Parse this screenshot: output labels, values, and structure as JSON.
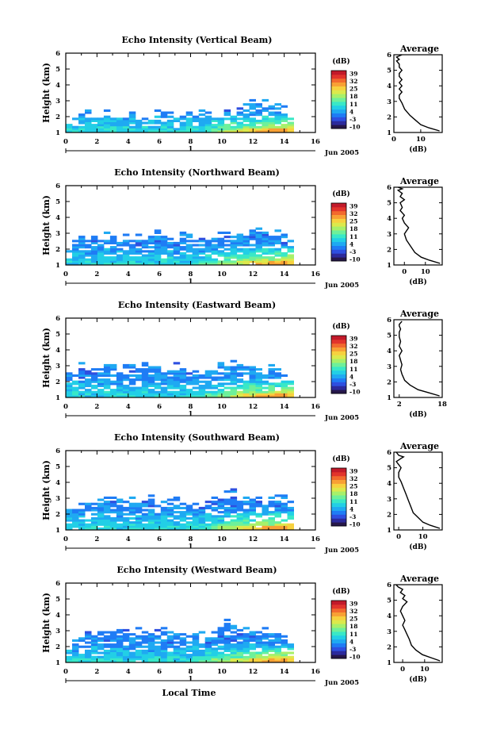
{
  "xlabel": "Local Time",
  "date_label": "Jun 2005",
  "date_tick_label": "1",
  "colorbar": {
    "unit_label": "(dB)",
    "tick_labels": [
      "39",
      "32",
      "25",
      "18",
      "11",
      "4",
      "-3",
      "-10"
    ],
    "colors": [
      "#26174a",
      "#2c2a9c",
      "#2e4fe0",
      "#1f7cf5",
      "#1fa9f2",
      "#22cfe6",
      "#39e8c7",
      "#6ef09a",
      "#a7f06a",
      "#dce94c",
      "#f7d13f",
      "#f8a035",
      "#f26a2e",
      "#e2342c",
      "#c21a2a"
    ]
  },
  "average_x_label": "(dB)",
  "chart_data": [
    {
      "type": "heatmap",
      "title": "Echo Intensity (Vertical Beam)",
      "ylabel": "Height (km)",
      "xlim": [
        0,
        16
      ],
      "ylim": [
        1,
        6
      ],
      "x_ticks": [
        "0",
        "2",
        "4",
        "6",
        "8",
        "10",
        "12",
        "14",
        "16"
      ],
      "y_ticks": [
        "1",
        "2",
        "3",
        "4",
        "5",
        "6"
      ],
      "top": [
        1.5,
        1.7,
        2.0,
        1.9,
        1.8,
        1.8,
        1.9,
        1.8,
        1.8,
        1.8,
        1.8,
        1.7,
        1.7,
        1.8,
        2.0,
        2.1,
        2.0,
        1.9,
        1.8,
        1.9,
        2.0,
        2.1,
        2.0,
        1.9,
        1.8,
        1.9,
        2.0,
        2.2,
        2.4,
        2.6,
        2.7,
        2.6,
        2.5,
        2.4,
        2.2,
        1.6
      ],
      "profile": {
        "title": "Average",
        "xlabel": "(dB)",
        "xlim": [
          0,
          18
        ],
        "ylim": [
          1,
          6
        ],
        "x_ticks": [
          "0",
          "10"
        ],
        "y_ticks": [
          "1",
          "2",
          "3",
          "4",
          "5",
          "6"
        ],
        "x": [
          17,
          13,
          10,
          8,
          6,
          4,
          3,
          2,
          2,
          3,
          2,
          3,
          2,
          3,
          2,
          2,
          3,
          2,
          2,
          1,
          2,
          1,
          3
        ],
        "y": [
          1.1,
          1.3,
          1.5,
          1.8,
          2.1,
          2.5,
          2.9,
          3.2,
          3.4,
          3.6,
          3.8,
          4.0,
          4.2,
          4.4,
          4.6,
          4.8,
          5.0,
          5.2,
          5.4,
          5.6,
          5.7,
          5.85,
          6.0
        ]
      }
    },
    {
      "type": "heatmap",
      "title": "Echo Intensity (Northward Beam)",
      "ylabel": "Height (km)",
      "xlim": [
        0,
        16
      ],
      "ylim": [
        1,
        6
      ],
      "x_ticks": [
        "0",
        "2",
        "4",
        "6",
        "8",
        "10",
        "12",
        "14",
        "16"
      ],
      "y_ticks": [
        "1",
        "2",
        "3",
        "4",
        "5",
        "6"
      ],
      "top": [
        1.8,
        2.1,
        2.4,
        2.5,
        2.6,
        2.4,
        2.6,
        2.5,
        2.7,
        2.6,
        2.5,
        2.6,
        2.5,
        2.7,
        2.8,
        2.6,
        2.4,
        2.5,
        2.6,
        2.5,
        2.4,
        2.3,
        2.4,
        2.5,
        2.6,
        2.7,
        2.8,
        2.9,
        2.8,
        2.7,
        2.9,
        2.8,
        2.6,
        2.7,
        2.8,
        2.4
      ],
      "profile": {
        "title": "Average",
        "xlabel": "(dB)",
        "xlim": [
          -5,
          18
        ],
        "ylim": [
          1,
          6
        ],
        "x_ticks": [
          "0",
          "10"
        ],
        "y_ticks": [
          "1",
          "2",
          "3",
          "4",
          "5",
          "6"
        ],
        "x": [
          17,
          12,
          8,
          5,
          3,
          1,
          0,
          2,
          0,
          -1,
          0,
          -2,
          -1,
          -2,
          0,
          -2,
          -1,
          -2,
          -3,
          -1,
          -2,
          -3
        ],
        "y": [
          1.1,
          1.3,
          1.5,
          1.8,
          2.2,
          2.6,
          3.0,
          3.4,
          3.7,
          4.0,
          4.2,
          4.5,
          4.7,
          5.0,
          5.2,
          5.4,
          5.6,
          5.7,
          5.8,
          5.9,
          5.95,
          6.0
        ]
      }
    },
    {
      "type": "heatmap",
      "title": "Echo Intensity (Eastward Beam)",
      "ylabel": "Height (km)",
      "xlim": [
        0,
        16
      ],
      "ylim": [
        1,
        6
      ],
      "x_ticks": [
        "0",
        "2",
        "4",
        "6",
        "8",
        "10",
        "12",
        "14",
        "16"
      ],
      "y_ticks": [
        "1",
        "2",
        "3",
        "4",
        "5",
        "6"
      ],
      "top": [
        2.3,
        2.4,
        2.7,
        2.6,
        2.5,
        2.7,
        2.8,
        2.6,
        2.5,
        2.6,
        2.7,
        2.8,
        2.9,
        2.7,
        2.6,
        2.5,
        2.7,
        2.8,
        2.6,
        2.5,
        2.4,
        2.3,
        2.5,
        2.6,
        2.8,
        2.7,
        2.9,
        3.0,
        2.8,
        2.7,
        2.6,
        2.5,
        2.7,
        2.6,
        2.4,
        2.1
      ],
      "profile": {
        "title": "Average",
        "xlabel": "(dB)",
        "xlim": [
          0,
          18
        ],
        "ylim": [
          1,
          6
        ],
        "x_ticks": [
          "2",
          "18"
        ],
        "y_ticks": [
          "1",
          "2",
          "3",
          "4",
          "5",
          "6"
        ],
        "x": [
          17,
          13,
          9,
          6,
          4,
          3,
          2.5,
          3,
          2.5,
          2,
          3,
          2,
          2.5,
          2,
          2,
          2.5,
          2,
          2,
          2.5,
          3
        ],
        "y": [
          1.1,
          1.3,
          1.5,
          1.8,
          2.1,
          2.5,
          2.8,
          3.1,
          3.4,
          3.7,
          4.0,
          4.3,
          4.6,
          4.9,
          5.2,
          5.4,
          5.6,
          5.7,
          5.8,
          5.9
        ]
      }
    },
    {
      "type": "heatmap",
      "title": "Echo Intensity (Southward Beam)",
      "ylabel": "Height (km)",
      "xlim": [
        0,
        16
      ],
      "ylim": [
        1,
        6
      ],
      "x_ticks": [
        "0",
        "2",
        "4",
        "6",
        "8",
        "10",
        "12",
        "14",
        "16"
      ],
      "y_ticks": [
        "1",
        "2",
        "3",
        "4",
        "5",
        "6"
      ],
      "top": [
        2.0,
        2.2,
        2.5,
        2.6,
        2.4,
        2.5,
        2.7,
        2.6,
        2.5,
        2.4,
        2.6,
        2.5,
        2.7,
        2.8,
        2.6,
        2.4,
        2.5,
        2.6,
        2.4,
        2.3,
        2.2,
        2.4,
        2.5,
        2.6,
        2.8,
        3.0,
        3.1,
        2.9,
        2.8,
        2.7,
        2.8,
        2.6,
        2.7,
        2.8,
        2.7,
        2.3
      ],
      "profile": {
        "title": "Average",
        "xlabel": "(dB)",
        "xlim": [
          -2,
          18
        ],
        "ylim": [
          1,
          6
        ],
        "x_ticks": [
          "0",
          "10"
        ],
        "y_ticks": [
          "1",
          "2",
          "3",
          "4",
          "5",
          "6"
        ],
        "x": [
          17,
          13,
          10,
          8,
          6,
          5,
          4,
          3,
          2,
          1,
          0,
          0,
          1,
          0,
          -1,
          1,
          2,
          0,
          -1
        ],
        "y": [
          1.1,
          1.3,
          1.5,
          1.8,
          2.1,
          2.5,
          2.9,
          3.3,
          3.7,
          4.1,
          4.4,
          4.7,
          5.0,
          5.2,
          5.4,
          5.6,
          5.7,
          5.8,
          6.0
        ]
      }
    },
    {
      "type": "heatmap",
      "title": "Echo Intensity (Westward Beam)",
      "ylabel": "Height (km)",
      "xlim": [
        0,
        16
      ],
      "ylim": [
        1,
        6
      ],
      "x_ticks": [
        "0",
        "2",
        "4",
        "6",
        "8",
        "10",
        "12",
        "14",
        "16"
      ],
      "y_ticks": [
        "1",
        "2",
        "3",
        "4",
        "5",
        "6"
      ],
      "top": [
        1.9,
        2.3,
        2.5,
        2.6,
        2.4,
        2.5,
        2.6,
        2.5,
        2.7,
        2.6,
        2.8,
        2.7,
        2.6,
        2.5,
        2.6,
        2.7,
        2.5,
        2.4,
        2.5,
        2.4,
        2.6,
        2.5,
        2.4,
        2.6,
        2.9,
        3.3,
        3.0,
        2.8,
        2.7,
        2.6,
        2.5,
        2.7,
        2.6,
        2.8,
        2.6,
        2.2
      ],
      "profile": {
        "title": "Average",
        "xlabel": "(dB)",
        "xlim": [
          -4,
          18
        ],
        "ylim": [
          1,
          6
        ],
        "x_ticks": [
          "0",
          "10"
        ],
        "y_ticks": [
          "1",
          "2",
          "3",
          "4",
          "5",
          "6"
        ],
        "x": [
          17,
          13,
          9,
          6,
          4,
          3,
          2,
          1,
          0,
          1,
          0,
          -1,
          0,
          2,
          0,
          1,
          -1,
          0,
          -2,
          -3
        ],
        "y": [
          1.1,
          1.3,
          1.5,
          1.8,
          2.1,
          2.5,
          2.8,
          3.1,
          3.4,
          3.7,
          4.0,
          4.3,
          4.6,
          4.9,
          5.1,
          5.3,
          5.5,
          5.7,
          5.85,
          6.0
        ]
      }
    }
  ]
}
